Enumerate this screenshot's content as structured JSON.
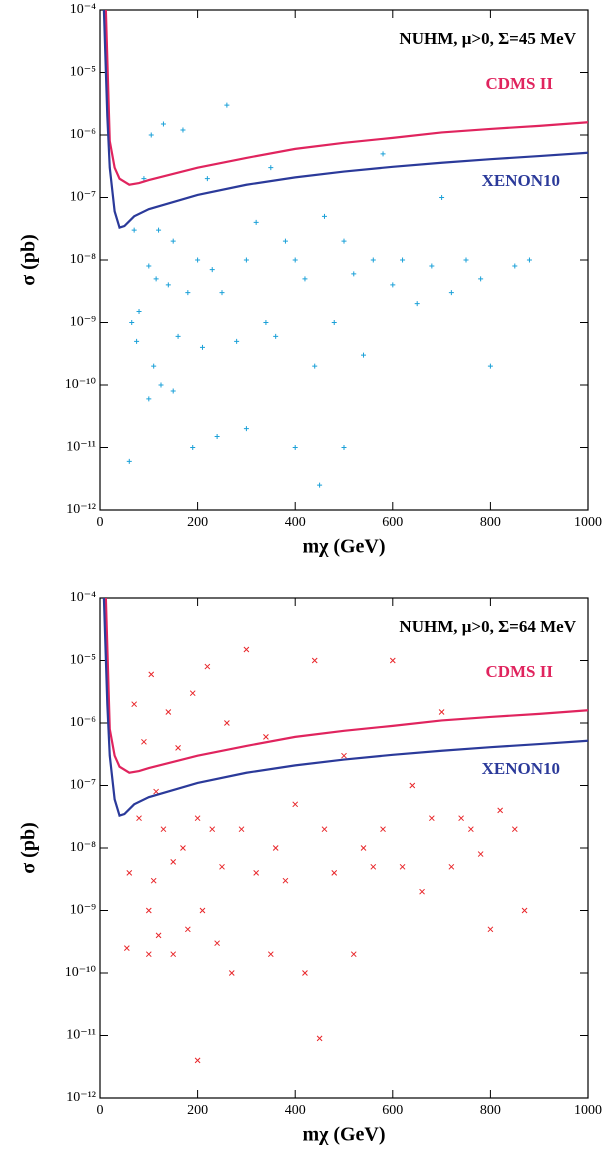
{
  "chart_data": [
    {
      "type": "scatter",
      "annotation": "NUHM, μ>0, Σ=45 MeV",
      "x_label": "mχ (GeV)",
      "y_label": "σ (pb)",
      "xlim": [
        0,
        1000
      ],
      "xticks": [
        0,
        200,
        400,
        600,
        800,
        1000
      ],
      "ylim": [
        1e-12,
        0.0001
      ],
      "log_y": true,
      "yticks": [
        {
          "value": 1e-12,
          "label": "10⁻¹²"
        },
        {
          "value": 1e-11,
          "label": "10⁻¹¹"
        },
        {
          "value": 1e-10,
          "label": "10⁻¹⁰"
        },
        {
          "value": 1e-09,
          "label": "10⁻⁹"
        },
        {
          "value": 1e-08,
          "label": "10⁻⁸"
        },
        {
          "value": 1e-07,
          "label": "10⁻⁷"
        },
        {
          "value": 1e-06,
          "label": "10⁻⁶"
        },
        {
          "value": 1e-05,
          "label": "10⁻⁵"
        },
        {
          "value": 0.0001,
          "label": "10⁻⁴"
        }
      ],
      "points": {
        "color": "#1aa0d8",
        "marker": "+",
        "x": [
          60,
          65,
          70,
          75,
          80,
          90,
          100,
          100,
          105,
          110,
          115,
          120,
          125,
          130,
          140,
          150,
          150,
          160,
          170,
          180,
          190,
          200,
          210,
          220,
          230,
          240,
          250,
          260,
          280,
          300,
          300,
          320,
          340,
          350,
          360,
          380,
          400,
          400,
          420,
          440,
          450,
          460,
          480,
          500,
          500,
          520,
          540,
          560,
          580,
          600,
          620,
          650,
          680,
          700,
          720,
          750,
          780,
          800,
          850,
          880
        ],
        "values": [
          6e-12,
          1e-09,
          3e-08,
          5e-10,
          1.5e-09,
          2e-07,
          8e-09,
          6e-11,
          1e-06,
          2e-10,
          5e-09,
          3e-08,
          1e-10,
          1.5e-06,
          4e-09,
          8e-11,
          2e-08,
          6e-10,
          1.2e-06,
          3e-09,
          1e-11,
          1e-08,
          4e-10,
          2e-07,
          7e-09,
          1.5e-11,
          3e-09,
          3e-06,
          5e-10,
          1e-08,
          2e-11,
          4e-08,
          1e-09,
          3e-07,
          6e-10,
          2e-08,
          1e-08,
          1e-11,
          5e-09,
          2e-10,
          2.5e-12,
          5e-08,
          1e-09,
          1e-11,
          2e-08,
          6e-09,
          3e-10,
          1e-08,
          5e-07,
          4e-09,
          1e-08,
          2e-09,
          8e-09,
          1e-07,
          3e-09,
          1e-08,
          5e-09,
          2e-10,
          8e-09,
          1e-08
        ]
      },
      "lines": [
        {
          "name": "CDMS II",
          "color": "#e0245e",
          "x": [
            12,
            20,
            30,
            40,
            60,
            80,
            100,
            200,
            300,
            400,
            500,
            600,
            700,
            800,
            900,
            1000
          ],
          "values": [
            0.0001,
            8e-07,
            3e-07,
            2e-07,
            1.6e-07,
            1.7e-07,
            1.9e-07,
            3e-07,
            4.3e-07,
            6e-07,
            7.5e-07,
            9e-07,
            1.1e-06,
            1.25e-06,
            1.4e-06,
            1.6e-06
          ]
        },
        {
          "name": "XENON10",
          "color": "#2b3a9a",
          "x": [
            8,
            15,
            20,
            30,
            40,
            50,
            70,
            100,
            200,
            300,
            400,
            500,
            600,
            700,
            800,
            900,
            1000
          ],
          "values": [
            0.0001,
            2e-06,
            3e-07,
            6e-08,
            3.3e-08,
            3.5e-08,
            5e-08,
            6.5e-08,
            1.1e-07,
            1.6e-07,
            2.1e-07,
            2.6e-07,
            3.1e-07,
            3.6e-07,
            4.1e-07,
            4.6e-07,
            5.2e-07
          ]
        }
      ]
    },
    {
      "type": "scatter",
      "annotation": "NUHM, μ>0, Σ=64 MeV",
      "x_label": "mχ (GeV)",
      "y_label": "σ (pb)",
      "xlim": [
        0,
        1000
      ],
      "xticks": [
        0,
        200,
        400,
        600,
        800,
        1000
      ],
      "ylim": [
        1e-12,
        0.0001
      ],
      "log_y": true,
      "yticks": [
        {
          "value": 1e-12,
          "label": "10⁻¹²"
        },
        {
          "value": 1e-11,
          "label": "10⁻¹¹"
        },
        {
          "value": 1e-10,
          "label": "10⁻¹⁰"
        },
        {
          "value": 1e-09,
          "label": "10⁻⁹"
        },
        {
          "value": 1e-08,
          "label": "10⁻⁸"
        },
        {
          "value": 1e-07,
          "label": "10⁻⁷"
        },
        {
          "value": 1e-06,
          "label": "10⁻⁶"
        },
        {
          "value": 1e-05,
          "label": "10⁻⁵"
        },
        {
          "value": 0.0001,
          "label": "10⁻⁴"
        }
      ],
      "points": {
        "color": "#e8262a",
        "marker": "x",
        "x": [
          55,
          60,
          70,
          80,
          90,
          100,
          100,
          105,
          110,
          115,
          120,
          130,
          140,
          150,
          150,
          160,
          170,
          180,
          190,
          200,
          200,
          210,
          220,
          230,
          240,
          250,
          260,
          270,
          290,
          300,
          320,
          340,
          350,
          360,
          380,
          400,
          420,
          440,
          450,
          460,
          480,
          500,
          520,
          540,
          560,
          580,
          600,
          620,
          640,
          660,
          680,
          700,
          720,
          740,
          760,
          780,
          800,
          820,
          850,
          870
        ],
        "values": [
          2.5e-10,
          4e-09,
          2e-06,
          3e-08,
          5e-07,
          1e-09,
          2e-10,
          6e-06,
          3e-09,
          8e-08,
          4e-10,
          2e-08,
          1.5e-06,
          6e-09,
          2e-10,
          4e-07,
          1e-08,
          5e-10,
          3e-06,
          3e-08,
          4e-12,
          1e-09,
          8e-06,
          2e-08,
          3e-10,
          5e-09,
          1e-06,
          1e-10,
          2e-08,
          1.5e-05,
          4e-09,
          6e-07,
          2e-10,
          1e-08,
          3e-09,
          5e-08,
          1e-10,
          1e-05,
          9e-12,
          2e-08,
          4e-09,
          3e-07,
          2e-10,
          1e-08,
          5e-09,
          2e-08,
          1e-05,
          5e-09,
          1e-07,
          2e-09,
          3e-08,
          1.5e-06,
          5e-09,
          3e-08,
          2e-08,
          8e-09,
          5e-10,
          4e-08,
          2e-08,
          1e-09
        ]
      },
      "lines": [
        {
          "name": "CDMS II",
          "color": "#e0245e",
          "x": [
            12,
            20,
            30,
            40,
            60,
            80,
            100,
            200,
            300,
            400,
            500,
            600,
            700,
            800,
            900,
            1000
          ],
          "values": [
            0.0001,
            8e-07,
            3e-07,
            2e-07,
            1.6e-07,
            1.7e-07,
            1.9e-07,
            3e-07,
            4.3e-07,
            6e-07,
            7.5e-07,
            9e-07,
            1.1e-06,
            1.25e-06,
            1.4e-06,
            1.6e-06
          ]
        },
        {
          "name": "XENON10",
          "color": "#2b3a9a",
          "x": [
            8,
            15,
            20,
            30,
            40,
            50,
            70,
            100,
            200,
            300,
            400,
            500,
            600,
            700,
            800,
            900,
            1000
          ],
          "values": [
            0.0001,
            2e-06,
            3e-07,
            6e-08,
            3.3e-08,
            3.5e-08,
            5e-08,
            6.5e-08,
            1.1e-07,
            1.6e-07,
            2.1e-07,
            2.6e-07,
            3.1e-07,
            3.6e-07,
            4.1e-07,
            4.6e-07,
            5.2e-07
          ]
        }
      ]
    }
  ]
}
